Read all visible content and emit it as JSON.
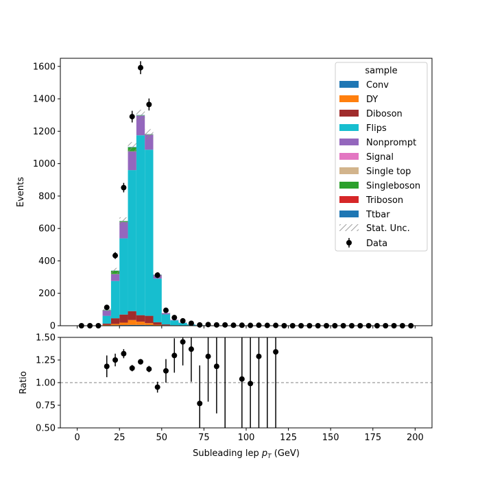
{
  "chart_data": [
    {
      "type": "bar",
      "stacked": true,
      "histogram": true,
      "xlabel": "Subleading lep p_T (GeV)",
      "ylabel": "Events",
      "xlim": [
        -10,
        210
      ],
      "ylim": [
        0,
        1650
      ],
      "yticks": [
        0,
        200,
        400,
        600,
        800,
        1000,
        1200,
        1400,
        1600
      ],
      "bin_edges": [
        0,
        5,
        10,
        15,
        20,
        25,
        30,
        35,
        40,
        45,
        50,
        55,
        60,
        65,
        70,
        75,
        80,
        85,
        90,
        95,
        100,
        105,
        110,
        115,
        120,
        125,
        130,
        135,
        140,
        145,
        150,
        155,
        160,
        165,
        170,
        175,
        180,
        185,
        190,
        195,
        200
      ],
      "series": [
        {
          "name": "Conv",
          "color": "#1f77b4",
          "values": [
            0,
            0,
            0,
            2,
            3,
            4,
            5,
            5,
            4,
            2,
            1,
            0,
            0,
            0,
            0,
            0,
            0,
            0,
            0,
            0,
            0,
            0,
            0,
            0,
            0,
            0,
            0,
            0,
            0,
            0,
            0,
            0,
            0,
            0,
            0,
            0,
            0,
            0,
            0,
            0
          ]
        },
        {
          "name": "DY",
          "color": "#ff7f0e",
          "values": [
            0,
            0,
            0,
            3,
            8,
            15,
            30,
            20,
            12,
            4,
            2,
            1,
            0,
            0,
            0,
            0,
            0,
            0,
            0,
            0,
            0,
            0,
            0,
            0,
            0,
            0,
            0,
            0,
            0,
            0,
            0,
            0,
            0,
            0,
            0,
            0,
            0,
            0,
            0,
            0
          ]
        },
        {
          "name": "Diboson",
          "color": "#a02c2c",
          "values": [
            0,
            0,
            0,
            8,
            35,
            50,
            55,
            40,
            45,
            15,
            5,
            2,
            1,
            0,
            0,
            0,
            0,
            0,
            0,
            0,
            0,
            0,
            0,
            0,
            0,
            0,
            0,
            0,
            0,
            0,
            0,
            0,
            0,
            0,
            0,
            0,
            0,
            0,
            0,
            0
          ]
        },
        {
          "name": "Flips",
          "color": "#17becf",
          "values": [
            0,
            0,
            0,
            48,
            230,
            470,
            870,
            1110,
            1025,
            270,
            62,
            30,
            16,
            7,
            3,
            2,
            1,
            1,
            1,
            1,
            0,
            0,
            0,
            0,
            0,
            0,
            0,
            0,
            0,
            0,
            0,
            0,
            0,
            0,
            0,
            0,
            0,
            0,
            0,
            0
          ]
        },
        {
          "name": "Nonprompt",
          "color": "#9467bd",
          "values": [
            0,
            0,
            0,
            32,
            42,
            100,
            115,
            120,
            92,
            22,
            8,
            3,
            2,
            1,
            0,
            0,
            0,
            0,
            0,
            0,
            0,
            0,
            0,
            0,
            0,
            0,
            0,
            0,
            0,
            0,
            0,
            0,
            0,
            0,
            0,
            0,
            0,
            0,
            0,
            0
          ]
        },
        {
          "name": "Signal",
          "color": "#e377c2",
          "values": [
            0,
            0,
            0,
            0,
            0,
            0,
            0,
            0,
            0,
            0,
            0,
            0,
            0,
            0,
            0,
            0,
            0,
            0,
            0,
            0,
            0,
            0,
            0,
            0,
            0,
            0,
            0,
            0,
            0,
            0,
            0,
            0,
            0,
            0,
            0,
            0,
            0,
            0,
            0,
            0
          ]
        },
        {
          "name": "Single top",
          "color": "#d2b48c",
          "values": [
            0,
            0,
            0,
            0,
            1,
            1,
            1,
            1,
            1,
            0,
            0,
            0,
            0,
            0,
            0,
            0,
            0,
            0,
            0,
            0,
            0,
            0,
            0,
            0,
            0,
            0,
            0,
            0,
            0,
            0,
            0,
            0,
            0,
            0,
            0,
            0,
            0,
            0,
            0,
            0
          ]
        },
        {
          "name": "Singleboson",
          "color": "#2ca02c",
          "values": [
            0,
            0,
            0,
            2,
            20,
            5,
            25,
            2,
            2,
            1,
            0,
            0,
            0,
            0,
            0,
            0,
            0,
            0,
            0,
            0,
            0,
            0,
            0,
            0,
            0,
            0,
            0,
            0,
            0,
            0,
            0,
            0,
            0,
            0,
            0,
            0,
            0,
            0,
            0,
            0
          ]
        },
        {
          "name": "Triboson",
          "color": "#d62728",
          "values": [
            0,
            0,
            0,
            0,
            0,
            0,
            0,
            0,
            0,
            0,
            0,
            0,
            0,
            0,
            0,
            0,
            0,
            0,
            0,
            0,
            0,
            0,
            0,
            0,
            0,
            0,
            0,
            0,
            0,
            0,
            0,
            0,
            0,
            0,
            0,
            0,
            0,
            0,
            0,
            0
          ]
        },
        {
          "name": "Ttbar",
          "color": "#1f77b4",
          "values": [
            0,
            0,
            0,
            1,
            1,
            1,
            2,
            2,
            1,
            1,
            0,
            0,
            0,
            0,
            0,
            0,
            0,
            0,
            0,
            0,
            0,
            0,
            0,
            0,
            0,
            0,
            0,
            0,
            0,
            0,
            0,
            0,
            0,
            0,
            0,
            0,
            0,
            0,
            0,
            0
          ]
        }
      ],
      "stat_unc_label": "Stat. Unc.",
      "data_label": "Data",
      "data_points": {
        "x": [
          2.5,
          7.5,
          12.5,
          17.5,
          22.5,
          27.5,
          32.5,
          37.5,
          42.5,
          47.5,
          52.5,
          57.5,
          62.5,
          67.5,
          72.5,
          77.5,
          82.5,
          87.5,
          92.5,
          97.5,
          102.5,
          107.5,
          112.5,
          117.5,
          122.5,
          127.5,
          132.5,
          137.5,
          142.5,
          147.5,
          152.5,
          157.5,
          162.5,
          167.5,
          172.5,
          177.5,
          182.5,
          187.5,
          192.5,
          197.5
        ],
        "y": [
          0,
          0,
          0,
          113,
          433,
          852,
          1290,
          1592,
          1365,
          312,
          95,
          50,
          30,
          15,
          5,
          7,
          5,
          5,
          3,
          3,
          2,
          3,
          2,
          2,
          0,
          0,
          0,
          0,
          0,
          0,
          0,
          0,
          0,
          0,
          0,
          0,
          0,
          0,
          0,
          0
        ]
      },
      "legend_title": "sample",
      "legend_position": "top-right"
    },
    {
      "type": "scatter",
      "xlabel": "Subleading lep p_T (GeV)",
      "ylabel": "Ratio",
      "xlim": [
        -10,
        210
      ],
      "ylim": [
        0.5,
        1.5
      ],
      "yticks": [
        0.5,
        0.75,
        1.0,
        1.25,
        1.5
      ],
      "ytick_labels": [
        "0.50",
        "0.75",
        "1.00",
        "1.25",
        "1.50"
      ],
      "xticks": [
        0,
        25,
        50,
        75,
        100,
        125,
        150,
        175,
        200
      ],
      "reference_line": 1.0,
      "x": [
        17.5,
        22.5,
        27.5,
        32.5,
        37.5,
        42.5,
        47.5,
        52.5,
        57.5,
        62.5,
        67.5,
        72.5,
        77.5,
        82.5,
        87.5,
        97.5,
        102.5,
        107.5,
        112.5,
        117.5
      ],
      "y": [
        1.18,
        1.25,
        1.32,
        1.16,
        1.23,
        1.15,
        0.95,
        1.13,
        1.3,
        1.45,
        1.37,
        0.77,
        1.29,
        1.18,
        null,
        1.04,
        0.99,
        1.29,
        null,
        1.34
      ],
      "err": [
        0.12,
        0.07,
        0.05,
        0.035,
        0.03,
        0.035,
        0.06,
        0.13,
        0.19,
        0.26,
        0.36,
        0.42,
        0.5,
        0.52,
        0.7,
        0.9,
        1.0,
        0.9,
        0.9,
        1.0
      ]
    }
  ]
}
